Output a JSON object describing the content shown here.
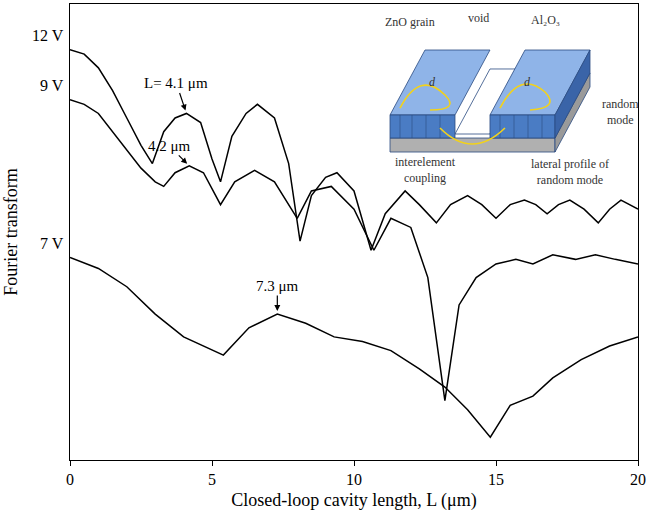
{
  "chart_data": {
    "type": "line",
    "x_label": "Closed-loop cavity length, L (μm)",
    "y_label": "Fourier transform",
    "xlim": [
      0,
      20
    ],
    "xticks": [
      0,
      5,
      10,
      15,
      20
    ],
    "ylim": [
      0,
      10
    ],
    "yticks": [],
    "tick_labels": "x",
    "grid": false,
    "series": [
      {
        "name": "12 V",
        "color": "#000000",
        "x": [
          0,
          0.5,
          1,
          1.5,
          2,
          2.5,
          2.9,
          3.3,
          3.7,
          4.1,
          4.6,
          5.0,
          5.3,
          5.7,
          6.2,
          6.6,
          7.2,
          7.7,
          8.1,
          8.5,
          9.0,
          9.4,
          10.0,
          10.6,
          11.1,
          11.8,
          12.3,
          12.9,
          13.4,
          14.0,
          14.5,
          15.0,
          15.5,
          16.0,
          16.4,
          16.8,
          17.2,
          17.6,
          18.1,
          18.6,
          19.0,
          19.4,
          20.0
        ],
        "values": [
          9.0,
          8.9,
          8.6,
          8.1,
          7.5,
          6.9,
          6.5,
          7.2,
          7.5,
          7.6,
          7.4,
          6.6,
          6.1,
          7.1,
          7.6,
          7.8,
          7.5,
          6.5,
          4.8,
          5.8,
          6.2,
          6.3,
          5.9,
          4.6,
          5.4,
          5.9,
          5.6,
          5.2,
          5.6,
          5.8,
          5.6,
          5.3,
          5.6,
          5.7,
          5.6,
          5.4,
          5.6,
          5.7,
          5.5,
          5.2,
          5.5,
          5.7,
          5.5
        ]
      },
      {
        "name": "9 V",
        "color": "#000000",
        "x": [
          0,
          0.5,
          1,
          1.5,
          2,
          2.5,
          3.0,
          3.3,
          3.7,
          4.2,
          4.7,
          5.3,
          5.8,
          6.5,
          7.2,
          8.0,
          8.5,
          9.2,
          10.0,
          10.7,
          11.3,
          12.0,
          12.6,
          13.2,
          13.7,
          14.3,
          15.0,
          15.7,
          16.3,
          17.0,
          17.8,
          18.5,
          19.2,
          20.0
        ],
        "values": [
          7.9,
          7.8,
          7.6,
          7.2,
          6.8,
          6.4,
          6.1,
          6.0,
          6.3,
          6.45,
          6.3,
          5.6,
          6.1,
          6.35,
          6.1,
          5.3,
          5.9,
          6.0,
          5.5,
          4.6,
          5.3,
          5.1,
          4.0,
          1.3,
          3.4,
          4.0,
          4.3,
          4.4,
          4.3,
          4.5,
          4.4,
          4.5,
          4.4,
          4.3
        ]
      },
      {
        "name": "7 V",
        "color": "#000000",
        "x": [
          0,
          1,
          2,
          3,
          4,
          5.4,
          6.3,
          7.3,
          8.3,
          9.3,
          10.3,
          11.3,
          12.3,
          13.2,
          14.0,
          14.8,
          15.5,
          16.3,
          17.0,
          18.0,
          19.0,
          20.0
        ],
        "values": [
          4.44,
          4.2,
          3.8,
          3.2,
          2.7,
          2.3,
          2.9,
          3.2,
          3.0,
          2.7,
          2.6,
          2.4,
          2.0,
          1.6,
          1.1,
          0.5,
          1.2,
          1.4,
          1.8,
          2.2,
          2.5,
          2.7
        ]
      }
    ],
    "annotations": [
      {
        "text": "L= 4.1 μm",
        "x": 4.1,
        "y": 7.6
      },
      {
        "text": "4.2 μm",
        "x": 4.2,
        "y": 6.45
      },
      {
        "text": "7.3 μm",
        "x": 7.3,
        "y": 3.2
      }
    ],
    "inset_labels": [
      "ZnO grain",
      "void",
      "Al₂O₃",
      "random mode",
      "interelement coupling",
      "lateral profile of random mode",
      "d",
      "d"
    ]
  }
}
